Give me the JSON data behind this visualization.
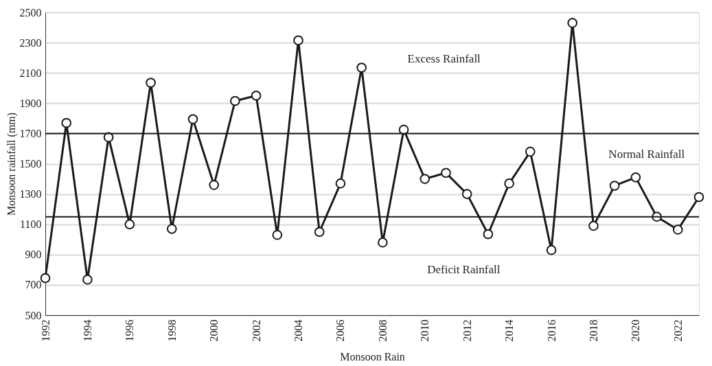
{
  "chart_data": {
    "type": "line",
    "xlabel": "Monsoon Rain",
    "ylabel": "Monsoon rainfall (mm)",
    "x": [
      1992,
      1993,
      1994,
      1995,
      1996,
      1997,
      1998,
      1999,
      2000,
      2001,
      2002,
      2003,
      2004,
      2005,
      2006,
      2007,
      2008,
      2009,
      2010,
      2011,
      2012,
      2013,
      2014,
      2015,
      2016,
      2017,
      2018,
      2019,
      2020,
      2021,
      2022,
      2023
    ],
    "series": [
      {
        "color": "#1a1a1a",
        "values": [
          745,
          1770,
          735,
          1675,
          1100,
          2035,
          1070,
          1795,
          1360,
          1915,
          1950,
          1030,
          2315,
          1050,
          1370,
          2135,
          980,
          1725,
          1400,
          1440,
          1300,
          1035,
          1370,
          1580,
          930,
          2430,
          1090,
          1355,
          1410,
          1150,
          1065,
          1280
        ]
      }
    ],
    "xlim": [
      1992,
      2023
    ],
    "xticks": [
      1992,
      1994,
      1996,
      1998,
      2000,
      2002,
      2004,
      2006,
      2008,
      2010,
      2012,
      2014,
      2016,
      2018,
      2020,
      2022
    ],
    "ylim": [
      500,
      2500
    ],
    "yticks": [
      500,
      700,
      900,
      1100,
      1300,
      1500,
      1700,
      1900,
      2100,
      2300,
      2500
    ],
    "ref_lines": [
      {
        "axis": "y",
        "value": 1700,
        "color": "#1a1a1a"
      },
      {
        "axis": "y",
        "value": 1150,
        "color": "#1a1a1a"
      }
    ],
    "annotations": [
      "Excess Rainfall",
      "Normal Rainfall",
      "Deficit Rainfall"
    ],
    "grid": "y",
    "marker": "circle",
    "line_style": "solid"
  }
}
